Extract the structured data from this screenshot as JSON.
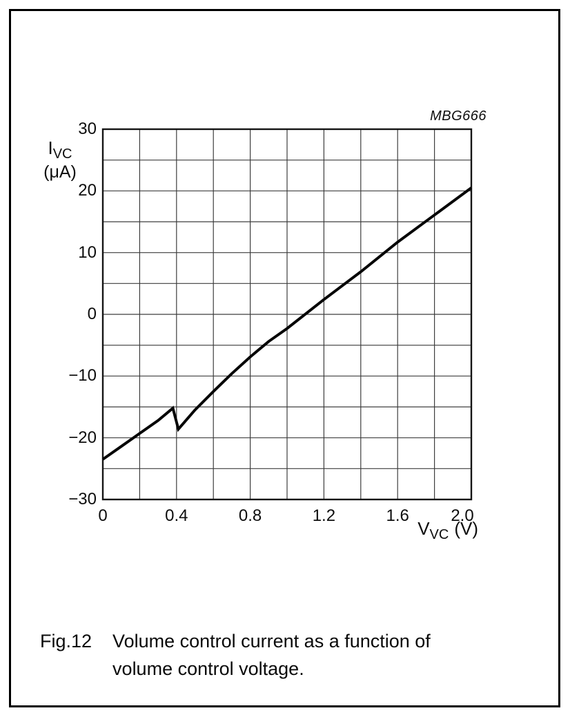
{
  "figure": {
    "code": "MBG666",
    "caption": {
      "label": "Fig.12",
      "line1": "Volume control current as a function of",
      "line2": "volume control voltage."
    }
  },
  "chart_data": {
    "type": "line",
    "title": "",
    "xlabel": {
      "main": "V",
      "sub": "VC",
      "unit": "(V)"
    },
    "ylabel": {
      "main": "I",
      "sub": "VC",
      "unit": "(μA)"
    },
    "xlim": [
      0,
      2.0
    ],
    "ylim": [
      -30,
      30
    ],
    "x_grid_step": 0.2,
    "y_grid_step": 5,
    "grid": true,
    "legend": "none",
    "watermark": "MBG666",
    "x_ticks": [
      0,
      0.4,
      0.8,
      1.2,
      1.6,
      2.0
    ],
    "x_tick_labels": [
      "0",
      "0.4",
      "0.8",
      "1.2",
      "1.6",
      "2.0"
    ],
    "y_ticks": [
      30,
      20,
      10,
      0,
      -10,
      -20,
      -30
    ],
    "y_tick_labels": [
      "30",
      "20",
      "10",
      "0",
      "−10",
      "−20",
      "−30"
    ],
    "series": [
      {
        "name": "volume-control-current",
        "points": [
          [
            0,
            -23.5
          ],
          [
            0.1,
            -21.4
          ],
          [
            0.2,
            -19.3
          ],
          [
            0.3,
            -17.2
          ],
          [
            0.38,
            -15.2
          ],
          [
            0.41,
            -18.6
          ],
          [
            0.5,
            -15.5
          ],
          [
            0.6,
            -12.5
          ],
          [
            0.7,
            -9.6
          ],
          [
            0.8,
            -6.9
          ],
          [
            0.9,
            -4.4
          ],
          [
            1.0,
            -2.3
          ],
          [
            1.2,
            2.4
          ],
          [
            1.4,
            6.9
          ],
          [
            1.6,
            11.7
          ],
          [
            1.8,
            16.1
          ],
          [
            2.0,
            20.5
          ]
        ]
      }
    ]
  }
}
